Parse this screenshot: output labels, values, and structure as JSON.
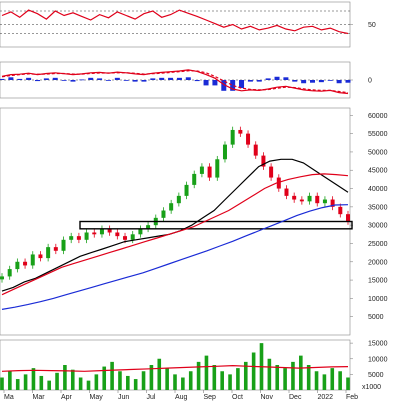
{
  "chart_data": [
    {
      "type": "line",
      "panel": "oscillator-top",
      "ylim": [
        0,
        100
      ],
      "yticks": [
        50
      ],
      "series": [
        {
          "color": "#e0001a",
          "values": [
            70,
            78,
            66,
            82,
            74,
            62,
            80,
            70,
            76,
            68,
            60,
            72,
            65,
            78,
            70,
            62,
            74,
            80,
            66,
            72,
            82,
            75,
            68,
            60,
            52,
            44,
            50,
            40,
            46,
            38,
            42,
            48,
            40,
            36,
            44,
            46,
            38,
            42,
            34,
            30
          ]
        }
      ],
      "ref_lines": [
        80,
        50,
        30
      ]
    },
    {
      "type": "line",
      "panel": "macd",
      "ylim": [
        -1,
        1
      ],
      "yticks": [
        0
      ],
      "series": [
        {
          "color": "#e0001a",
          "values": [
            0.2,
            0.3,
            0.32,
            0.38,
            0.3,
            0.36,
            0.4,
            0.35,
            0.3,
            0.34,
            0.4,
            0.42,
            0.38,
            0.44,
            0.4,
            0.34,
            0.3,
            0.38,
            0.42,
            0.46,
            0.5,
            0.56,
            0.48,
            0.3,
            0.1,
            -0.25,
            -0.5,
            -0.6,
            -0.55,
            -0.58,
            -0.5,
            -0.4,
            -0.35,
            -0.45,
            -0.55,
            -0.6,
            -0.62,
            -0.58,
            -0.7,
            -0.75
          ]
        },
        {
          "color": "#e0001a",
          "dashed": true,
          "values": [
            0.18,
            0.25,
            0.3,
            0.34,
            0.32,
            0.33,
            0.36,
            0.36,
            0.33,
            0.33,
            0.36,
            0.39,
            0.39,
            0.4,
            0.4,
            0.37,
            0.33,
            0.35,
            0.38,
            0.42,
            0.46,
            0.51,
            0.5,
            0.4,
            0.2,
            -0.05,
            -0.3,
            -0.45,
            -0.52,
            -0.55,
            -0.53,
            -0.46,
            -0.4,
            -0.42,
            -0.49,
            -0.55,
            -0.58,
            -0.58,
            -0.64,
            -0.7
          ]
        }
      ],
      "histogram_color": "#1a2bd6"
    },
    {
      "type": "line",
      "panel": "price",
      "ylim": [
        0,
        62000
      ],
      "yticks": [
        5000,
        10000,
        15000,
        20000,
        25000,
        30000,
        35000,
        40000,
        45000,
        50000,
        55000,
        60000
      ],
      "candles_close": [
        16000,
        18000,
        20000,
        19000,
        22000,
        21000,
        24000,
        23000,
        26000,
        27000,
        26000,
        28000,
        27500,
        29000,
        28000,
        27000,
        26000,
        27500,
        29000,
        30000,
        32000,
        34000,
        36000,
        38000,
        41000,
        44000,
        46000,
        43000,
        48000,
        52000,
        56000,
        55000,
        52000,
        49000,
        46000,
        43000,
        40000,
        38000,
        37000,
        36500,
        38000,
        36000,
        37000,
        35000,
        33000,
        31000
      ],
      "series": [
        {
          "name": "",
          "color": "#000000",
          "values": [
            12000,
            13000,
            14500,
            15500,
            17000,
            18500,
            20000,
            21500,
            22500,
            23500,
            24500,
            25500,
            26000,
            26500,
            27000,
            27500,
            28500,
            30000,
            32000,
            34000,
            37000,
            40000,
            43000,
            46000,
            47500,
            48000,
            48000,
            47000,
            45000,
            43000,
            41000,
            39000
          ]
        },
        {
          "name": "",
          "color": "#e0001a",
          "values": [
            11000,
            12500,
            14000,
            15500,
            17000,
            18500,
            19500,
            20500,
            21500,
            22500,
            23500,
            24500,
            25500,
            26500,
            27500,
            28500,
            29500,
            31000,
            32500,
            34000,
            36000,
            38000,
            40000,
            41500,
            42500,
            43200,
            43800,
            44000,
            43800,
            43500
          ]
        },
        {
          "name": "",
          "color": "#1a2bd6",
          "values": [
            7000,
            7600,
            8300,
            9100,
            10000,
            11000,
            12000,
            13000,
            14000,
            15000,
            16000,
            17000,
            18200,
            19400,
            20600,
            21800,
            23000,
            24300,
            25600,
            27000,
            28400,
            29800,
            31200,
            32600,
            33800,
            34800,
            35500,
            35600
          ]
        }
      ],
      "annotation": {
        "type": "support-box",
        "y_from": 29000,
        "y_to": 31000
      }
    },
    {
      "type": "bar",
      "panel": "volume",
      "ylim": [
        0,
        16000
      ],
      "yticks": [
        5000,
        10000,
        15000
      ],
      "unit_label": "x1000",
      "bar_color": "#18a018",
      "ma_color": "#e0001a",
      "values": [
        4000,
        6000,
        3500,
        5000,
        7000,
        4500,
        3000,
        5500,
        8000,
        6500,
        4000,
        3000,
        5000,
        7500,
        9000,
        6000,
        4500,
        3500,
        6000,
        8000,
        10000,
        7000,
        5000,
        4000,
        6000,
        9000,
        11000,
        8000,
        6000,
        5000,
        7000,
        9000,
        12000,
        15000,
        10000,
        8000,
        7000,
        9000,
        11000,
        8000,
        6000,
        5000,
        7000,
        6000,
        4000
      ],
      "ma_values": [
        6000,
        6200,
        6300,
        6200,
        6100,
        6000,
        6200,
        6400,
        6600,
        6800,
        7000,
        7200,
        7400,
        7600,
        7800,
        7600,
        7400,
        7200,
        7000,
        7200,
        7400,
        7500
      ]
    }
  ],
  "x_axis": {
    "labels": [
      "Ma",
      "Mar",
      "Apr",
      "May",
      "Jun",
      "Jul",
      "Aug",
      "Sep",
      "Oct",
      "Nov",
      "Dec",
      "2022",
      "Feb"
    ]
  }
}
